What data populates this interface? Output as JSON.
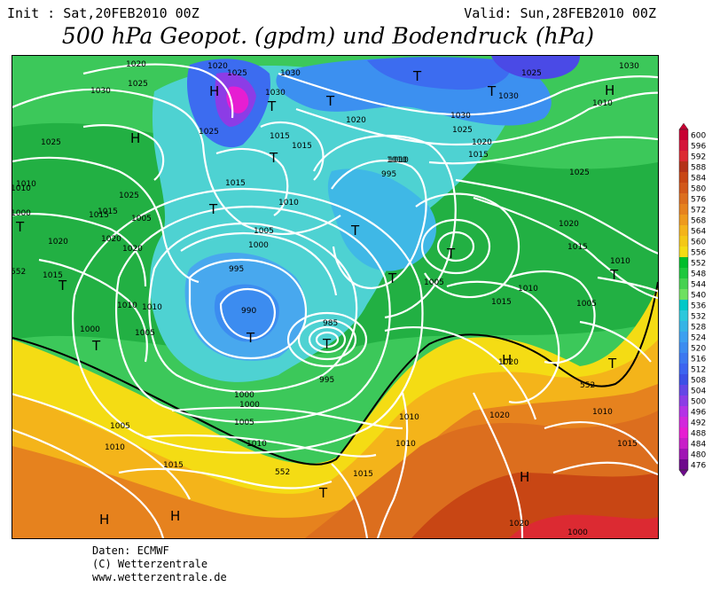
{
  "header": {
    "init": "Init : Sat,20FEB2010 00Z",
    "valid": "Valid: Sun,28FEB2010 00Z",
    "title": "500 hPa Geopot. (gpdm) und Bodendruck (hPa)"
  },
  "footer": {
    "line1": "Daten: ECMWF",
    "line2": "(C) Wetterzentrale",
    "line3": "www.wetterzentrale.de"
  },
  "legend": {
    "levels": [
      "600",
      "596",
      "592",
      "588",
      "584",
      "580",
      "576",
      "572",
      "568",
      "564",
      "560",
      "556",
      "552",
      "548",
      "544",
      "540",
      "536",
      "532",
      "528",
      "524",
      "520",
      "516",
      "512",
      "508",
      "504",
      "500",
      "496",
      "492",
      "488",
      "484",
      "480",
      "476"
    ],
    "colors": [
      "#c80032",
      "#d4143a",
      "#dc2a32",
      "#b43218",
      "#c84614",
      "#d2581a",
      "#dc6e1e",
      "#e6821e",
      "#ee9a1c",
      "#f4b41a",
      "#f4c816",
      "#f4dc14",
      "#00be2a",
      "#1ec83c",
      "#46d250",
      "#6ee060",
      "#00c8c8",
      "#2cc8dc",
      "#36b4e6",
      "#3ca0f0",
      "#3c8cf0",
      "#3c78f0",
      "#3c64f0",
      "#3c50e6",
      "#6446e6",
      "#8c3ce6",
      "#b432e6",
      "#d228dc",
      "#e61ed2",
      "#c81ec8",
      "#a014b4",
      "#6e0a8c"
    ]
  },
  "isobar_labels": [
    "1020",
    "1025",
    "1020",
    "1030",
    "1025",
    "1030",
    "1030",
    "1025",
    "1020",
    "1015",
    "1010",
    "1025",
    "1015",
    "1015",
    "1010",
    "1020",
    "1010",
    "1005",
    "1000",
    "995",
    "1005",
    "1000",
    "995",
    "990",
    "985",
    "995",
    "1000",
    "1005",
    "1010",
    "1015",
    "1010",
    "1015",
    "1020",
    "1010",
    "1015",
    "1005",
    "1010",
    "1025",
    "1020",
    "1015",
    "1010",
    "1005",
    "1030",
    "1030",
    "1025",
    "1030",
    "1025",
    "1020",
    "1015",
    "1010",
    "1010",
    "1015",
    "1020",
    "1010",
    "1015",
    "1005",
    "1000",
    "1010",
    "1025",
    "1015",
    "1020",
    "1010",
    "1005",
    "1000",
    "1020",
    "1015",
    "1010",
    "552",
    "552",
    "552",
    "1010",
    "1000",
    "1020"
  ],
  "pressure_systems": {
    "high": "H",
    "low": "T"
  }
}
